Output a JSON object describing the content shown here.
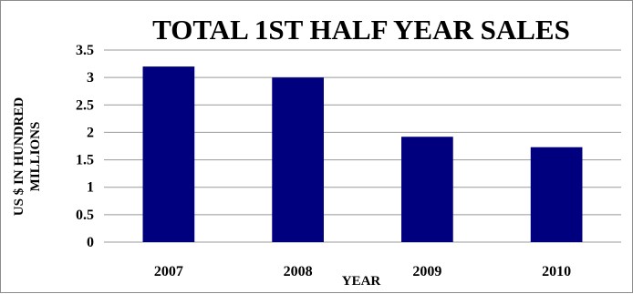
{
  "chart_data": {
    "type": "bar",
    "title": "TOTAL 1ST HALF YEAR SALES",
    "xlabel": "YEAR",
    "ylabel_lines": [
      "US $ IN HUNDRED",
      "MILLIONS"
    ],
    "categories": [
      "2007",
      "2008",
      "2009",
      "2010"
    ],
    "values": [
      3.2,
      3.0,
      1.92,
      1.73
    ],
    "yticks": [
      "0",
      "0.5",
      "1",
      "1.5",
      "2",
      "2.5",
      "3",
      "3.5"
    ],
    "ylim": [
      0,
      3.5
    ],
    "grid": true,
    "legend": "none",
    "bar_color": "#00007f",
    "grid_color": "#999999"
  }
}
